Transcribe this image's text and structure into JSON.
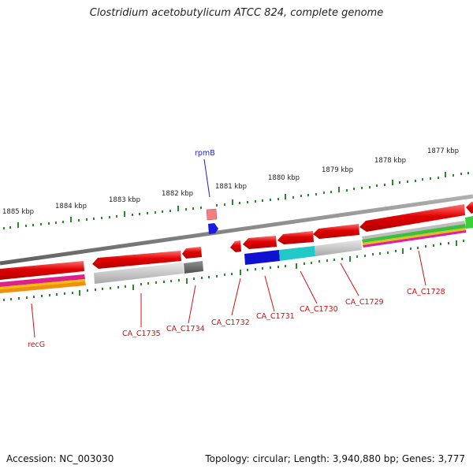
{
  "title": "Clostridium acetobutylicum ATCC 824, complete genome",
  "footer": {
    "accession": "Accession: NC_003030",
    "summary": "Topology: circular; Length: 3,940,880 bp; Genes: 3,777"
  },
  "scale_labels": [
    "1885 kbp",
    "1884 kbp",
    "1883 kbp",
    "1882 kbp",
    "1881 kbp",
    "1880 kbp",
    "1879 kbp",
    "1878 kbp",
    "1877 kbp"
  ],
  "gene_labels": [
    "rpmB",
    "recG",
    "CA_C1735",
    "CA_C1734",
    "CA_C1732",
    "CA_C1731",
    "CA_C1730",
    "CA_C1729",
    "CA_C1728"
  ],
  "colors": {
    "forward_feature": "#e01010",
    "rpmB": "#1a1ae0",
    "backbone": "#808080",
    "tick": "#2a8a2a",
    "cds_gray": "#c8c8c8",
    "cds_dark_gray": "#707070",
    "cds_blue": "#1010d0",
    "cds_cyan": "#20c8c8"
  }
}
